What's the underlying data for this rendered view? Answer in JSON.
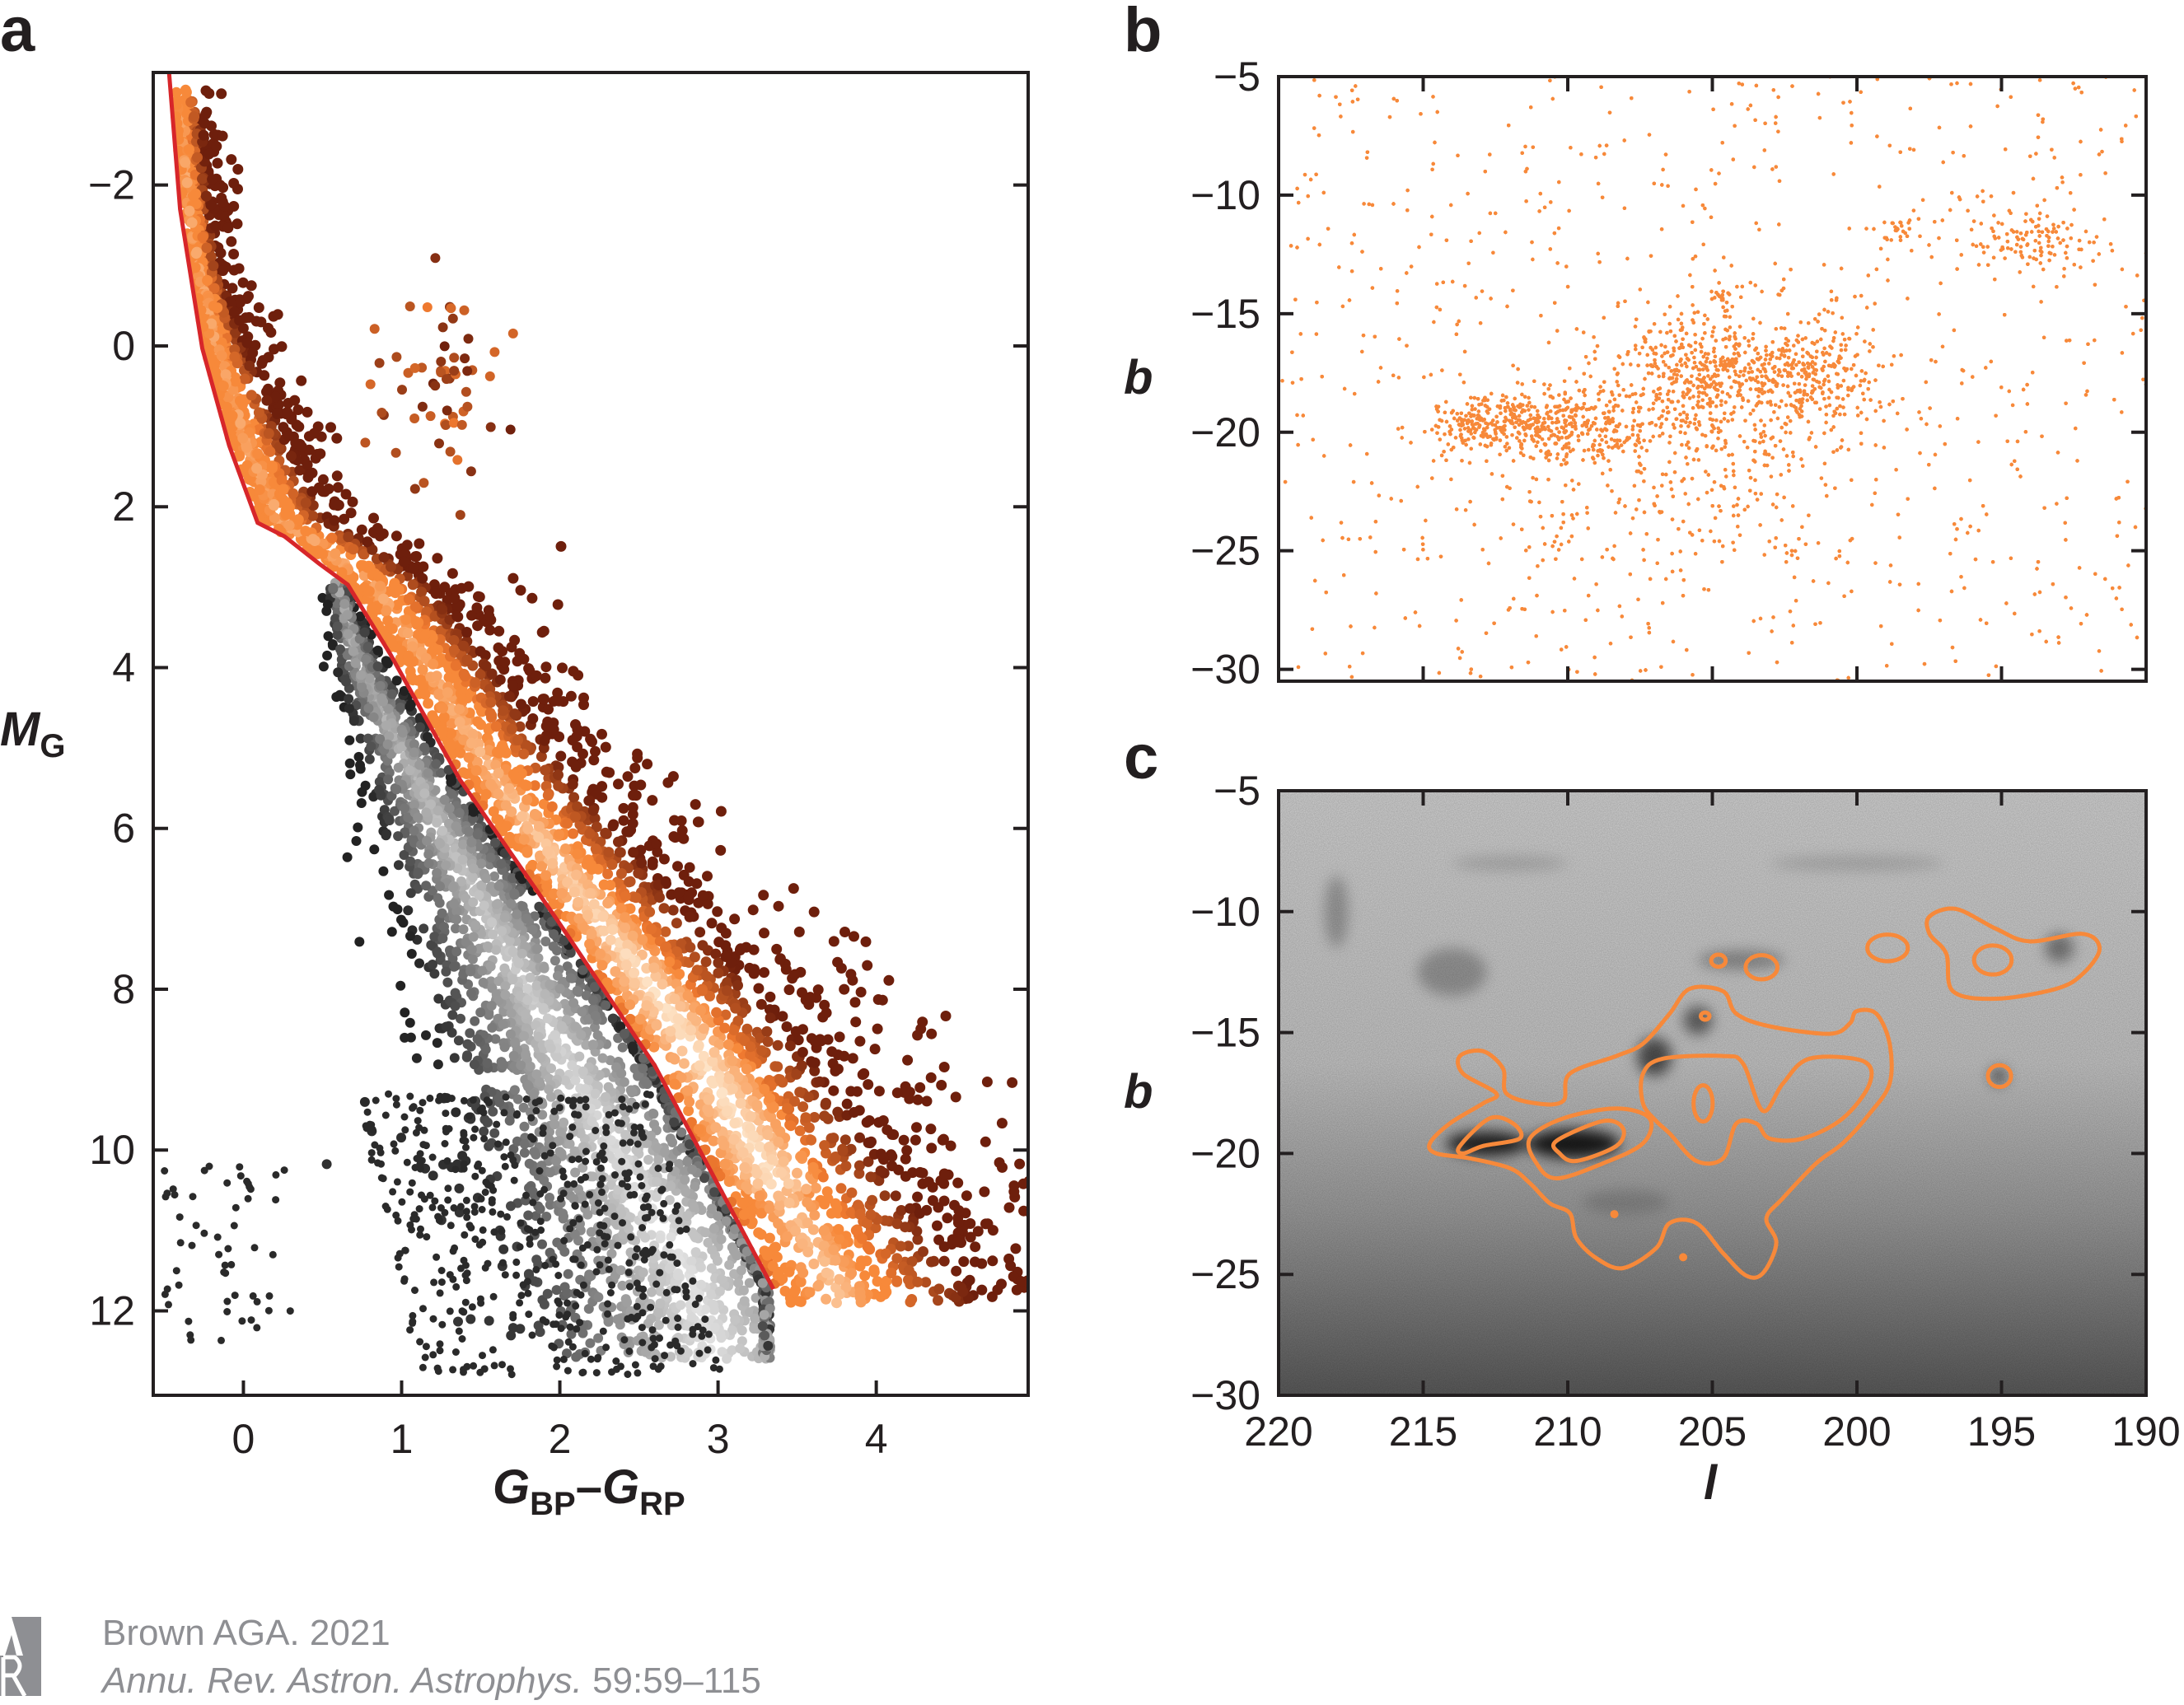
{
  "colors": {
    "isochrone": "#d7262a",
    "orange": "#f7893a",
    "frame": "#231f20",
    "credit_gray": "#8e8f93"
  },
  "chart_data": [
    {
      "panel": "a",
      "type": "scatter",
      "xlabel_main": "G",
      "xlabel_sub1": "BP",
      "xlabel_dash": "–",
      "xlabel_main2": "G",
      "xlabel_sub2": "RP",
      "ylabel_main": "M",
      "ylabel_sub": "G",
      "xlim": [
        -0.57,
        4.96
      ],
      "ylim": [
        13.05,
        -3.4
      ],
      "xticks": [
        0,
        1,
        2,
        3,
        4
      ],
      "xtick_labels": [
        "0",
        "1",
        "2",
        "3",
        "4"
      ],
      "yticks": [
        -2,
        0,
        2,
        4,
        6,
        8,
        10,
        12
      ],
      "ytick_labels": [
        "−2",
        "0",
        "2",
        "4",
        "6",
        "8",
        "10",
        "12"
      ],
      "isochrone": [
        [
          -0.47,
          -3.4
        ],
        [
          -0.4,
          -1.7
        ],
        [
          -0.26,
          0.03
        ],
        [
          -0.09,
          1.24
        ],
        [
          0.09,
          2.2
        ],
        [
          0.26,
          2.37
        ],
        [
          0.48,
          2.71
        ],
        [
          0.66,
          2.97
        ],
        [
          0.93,
          3.84
        ],
        [
          1.37,
          5.4
        ],
        [
          1.98,
          7.13
        ],
        [
          2.6,
          8.95
        ],
        [
          3.35,
          11.73
        ]
      ],
      "main_sequence_ridge": [
        [
          2.9,
          0.58
        ],
        [
          4,
          0.74
        ],
        [
          6,
          1.25
        ],
        [
          8,
          1.8
        ],
        [
          10,
          2.35
        ],
        [
          11.5,
          2.8
        ],
        [
          12.4,
          2.95
        ]
      ],
      "young_band_mag_range": [
        -3.2,
        11.9
      ],
      "white_dwarf_region": {
        "color": [
          -0.5,
          0.3
        ],
        "mag": [
          10.2,
          12.4
        ]
      },
      "grid": false
    },
    {
      "panel": "b",
      "type": "scatter",
      "xlim": [
        220,
        190
      ],
      "ylim": [
        -30.5,
        -5
      ],
      "yticks": [
        -5,
        -10,
        -15,
        -20,
        -25,
        -30
      ],
      "ytick_labels": [
        "−5",
        "−10",
        "−15",
        "−20",
        "−25",
        "−30"
      ],
      "ylabel": "b",
      "color": "#f7893a",
      "groups": [
        {
          "l": 210.5,
          "b": -19.6,
          "sl": 1.6,
          "sb": 0.7,
          "weight": 0.16
        },
        {
          "l": 205.0,
          "b": -17.6,
          "sl": 1.6,
          "sb": 1.4,
          "weight": 0.2
        },
        {
          "l": 201.5,
          "b": -17.5,
          "sl": 1.1,
          "sb": 1.1,
          "weight": 0.1
        },
        {
          "l": 213.2,
          "b": -19.7,
          "sl": 0.7,
          "sb": 0.45,
          "weight": 0.04
        },
        {
          "l": 194.0,
          "b": -12.0,
          "sl": 1.2,
          "sb": 0.7,
          "weight": 0.05
        },
        {
          "l": 204.6,
          "b": -14.3,
          "sl": 0.2,
          "sb": 0.3,
          "weight": 0.01
        },
        {
          "l": 198.7,
          "b": -11.5,
          "sl": 0.3,
          "sb": 0.2,
          "weight": 0.008
        },
        {
          "l": 206.0,
          "b": -21.5,
          "sl": 3.0,
          "sb": 2.5,
          "weight": 0.12
        }
      ],
      "background_fraction": 0.31,
      "grid": false
    },
    {
      "panel": "c",
      "type": "contour",
      "xlim": [
        220,
        190
      ],
      "ylim": [
        -30,
        -5
      ],
      "xticks": [
        220,
        215,
        210,
        205,
        200,
        195,
        190
      ],
      "xtick_labels": [
        "220",
        "215",
        "210",
        "205",
        "200",
        "195",
        "190"
      ],
      "yticks": [
        -5,
        -10,
        -15,
        -20,
        -25,
        -30
      ],
      "ytick_labels": [
        "−5",
        "−10",
        "−15",
        "−20",
        "−25",
        "−30"
      ],
      "xlabel": "l",
      "ylabel": "b",
      "contour_color": "#f7893a",
      "contours": [
        [
          [
            214.77,
            -19.58
          ],
          [
            214.08,
            -18.76
          ],
          [
            212.93,
            -17.93
          ],
          [
            212.47,
            -17.52
          ],
          [
            213.62,
            -16.7
          ],
          [
            213.73,
            -15.97
          ],
          [
            212.93,
            -15.77
          ],
          [
            212.24,
            -16.49
          ],
          [
            212.12,
            -17.52
          ],
          [
            211.08,
            -17.93
          ],
          [
            210.16,
            -17.83
          ],
          [
            209.93,
            -16.7
          ],
          [
            208.32,
            -15.97
          ],
          [
            207.4,
            -15.46
          ],
          [
            206.48,
            -14.22
          ],
          [
            205.78,
            -13.19
          ],
          [
            204.63,
            -13.29
          ],
          [
            204.17,
            -14.22
          ],
          [
            203.02,
            -14.74
          ],
          [
            200.95,
            -15.05
          ],
          [
            200.25,
            -14.63
          ],
          [
            200.02,
            -14.12
          ],
          [
            199.33,
            -14.22
          ],
          [
            198.87,
            -15.46
          ],
          [
            198.87,
            -17.11
          ],
          [
            199.56,
            -18.35
          ],
          [
            200.49,
            -19.58
          ],
          [
            201.41,
            -20.41
          ],
          [
            202.56,
            -21.85
          ],
          [
            203.13,
            -22.68
          ],
          [
            202.79,
            -23.71
          ],
          [
            203.25,
            -24.95
          ],
          [
            203.83,
            -25.05
          ],
          [
            204.63,
            -24.12
          ],
          [
            205.55,
            -22.88
          ],
          [
            206.48,
            -22.88
          ],
          [
            206.94,
            -23.91
          ],
          [
            208.09,
            -24.74
          ],
          [
            209.01,
            -24.33
          ],
          [
            209.7,
            -23.5
          ],
          [
            209.93,
            -22.47
          ],
          [
            210.62,
            -22.06
          ],
          [
            211.31,
            -21.23
          ],
          [
            212.0,
            -20.61
          ],
          [
            213.39,
            -20.2
          ],
          [
            214.54,
            -20.0
          ]
        ],
        [
          [
            207.4,
            -16.7
          ],
          [
            206.71,
            -16.08
          ],
          [
            204.63,
            -15.97
          ],
          [
            203.94,
            -16.28
          ],
          [
            203.25,
            -18.24
          ],
          [
            202.56,
            -17.11
          ],
          [
            201.64,
            -16.08
          ],
          [
            199.79,
            -16.18
          ],
          [
            199.56,
            -17.11
          ],
          [
            200.49,
            -18.55
          ],
          [
            201.87,
            -19.38
          ],
          [
            203.02,
            -19.38
          ],
          [
            203.48,
            -18.76
          ],
          [
            204.17,
            -18.76
          ],
          [
            204.63,
            -20.2
          ],
          [
            205.55,
            -20.31
          ],
          [
            206.48,
            -19.17
          ],
          [
            206.94,
            -18.66
          ],
          [
            207.4,
            -17.93
          ]
        ],
        [
          [
            211.31,
            -19.38
          ],
          [
            210.16,
            -18.55
          ],
          [
            208.32,
            -18.14
          ],
          [
            207.17,
            -18.55
          ],
          [
            207.4,
            -19.58
          ],
          [
            208.78,
            -20.41
          ],
          [
            210.39,
            -21.03
          ],
          [
            211.08,
            -20.41
          ]
        ],
        [
          [
            210.39,
            -19.48
          ],
          [
            208.78,
            -18.66
          ],
          [
            208.09,
            -18.96
          ],
          [
            208.32,
            -19.69
          ],
          [
            209.7,
            -20.31
          ],
          [
            210.28,
            -20.0
          ]
        ],
        [
          [
            213.73,
            -19.69
          ],
          [
            212.7,
            -18.55
          ],
          [
            211.89,
            -18.76
          ],
          [
            211.66,
            -19.38
          ],
          [
            212.93,
            -19.69
          ],
          [
            213.62,
            -20.0
          ]
        ],
        [
          [
            197.49,
            -10.2
          ],
          [
            196.57,
            -9.89
          ],
          [
            195.19,
            -10.71
          ],
          [
            194.03,
            -11.23
          ],
          [
            192.19,
            -10.92
          ],
          [
            191.61,
            -11.54
          ],
          [
            192.19,
            -12.57
          ],
          [
            193.11,
            -13.19
          ],
          [
            195.19,
            -13.6
          ],
          [
            196.68,
            -13.29
          ],
          [
            196.91,
            -11.74
          ],
          [
            197.49,
            -10.92
          ]
        ]
      ],
      "contour_ellipses": [
        {
          "l": 205.32,
          "b": -17.93,
          "rl": 0.33,
          "rb": 0.75
        },
        {
          "l": 203.3,
          "b": -12.3,
          "rl": 0.55,
          "rb": 0.5
        },
        {
          "l": 204.79,
          "b": -12.03,
          "rl": 0.25,
          "rb": 0.25
        },
        {
          "l": 198.94,
          "b": -11.5,
          "rl": 0.7,
          "rb": 0.55
        },
        {
          "l": 195.07,
          "b": -16.8,
          "rl": 0.4,
          "rb": 0.45
        },
        {
          "l": 205.25,
          "b": -14.32,
          "rl": 0.15,
          "rb": 0.15
        },
        {
          "l": 195.3,
          "b": -12.0,
          "rl": 0.65,
          "rb": 0.6
        }
      ],
      "contour_dots": [
        [
          206.01,
          -24.29
        ],
        [
          208.39,
          -22.51
        ]
      ],
      "background": "grayscale extinction map"
    }
  ],
  "panels": {
    "a": "a",
    "b": "b",
    "c": "c"
  },
  "credit": {
    "logo": "AR",
    "line1": "Brown AGA. 2021",
    "line2_journal": "Annu. Rev. Astron. Astrophys.",
    "line2_pages": " 59:59–115"
  }
}
